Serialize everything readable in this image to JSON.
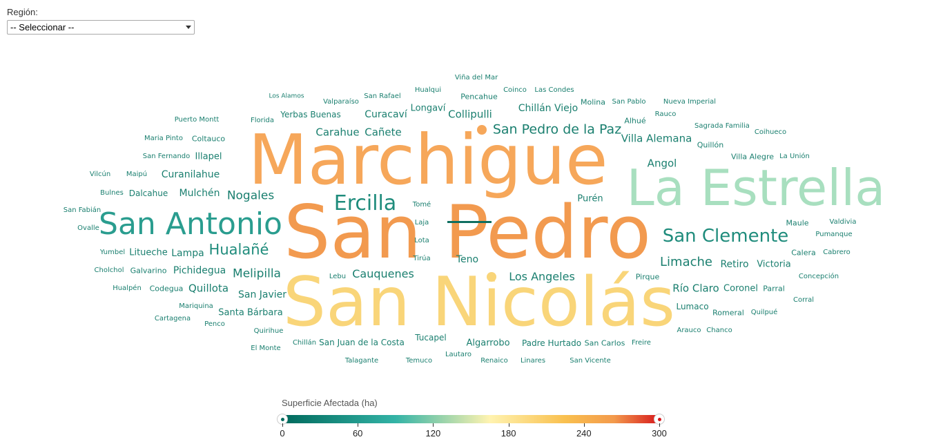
{
  "filter": {
    "label": "Región:",
    "selected": "-- Seleccionar --"
  },
  "legend": {
    "title": "Superficie Afectada (ha)",
    "ticks": [
      "0",
      "60",
      "120",
      "180",
      "240",
      "300"
    ],
    "range": [
      0,
      300
    ],
    "colors": [
      "#00695c",
      "#33b3a6",
      "#fff3b0",
      "#f9c04f",
      "#f39a4c",
      "#d7191c"
    ]
  },
  "words": [
    {
      "text": "Marchigue",
      "color": "#f6a75a"
    },
    {
      "text": "San Pedro",
      "color": "#f29a4f"
    },
    {
      "text": "San Nicolás",
      "color": "#f9d579"
    },
    {
      "text": "La Estrella",
      "color": "#a8dfbf"
    },
    {
      "text": "San Antonio",
      "color": "#2a9d8f"
    },
    {
      "text": "Ercilla",
      "color": "#1f8c7c"
    },
    {
      "text": "San Clemente",
      "color": "#1f8c7c"
    },
    {
      "text": "Hualañé",
      "color": "#1f8c7c"
    },
    {
      "text": "San Pedro de la Paz",
      "color": "#1a7f6f"
    },
    {
      "text": "Nogales",
      "color": "#1a7f6f"
    },
    {
      "text": "Limache",
      "color": "#1a7f6f"
    },
    {
      "text": "Villa Alemana",
      "color": "#1a7f6f"
    },
    {
      "text": "Cauquenes",
      "color": "#1a7f6f"
    },
    {
      "text": "Los Angeles",
      "color": "#1a7f6f"
    },
    {
      "text": "Melipilla",
      "color": "#1a7f6f"
    },
    {
      "text": "Carahue",
      "color": "#1a7f6f"
    },
    {
      "text": "Cañete",
      "color": "#1a7f6f"
    },
    {
      "text": "Collipulli",
      "color": "#1a7f6f"
    },
    {
      "text": "Chillán Viejo",
      "color": "#1a7f6f"
    },
    {
      "text": "Curacaví",
      "color": "#1a7f6f"
    },
    {
      "text": "Angol",
      "color": "#1a7f6f"
    },
    {
      "text": "Mulchén",
      "color": "#1a7f6f"
    },
    {
      "text": "Curanilahue",
      "color": "#1a7f6f"
    },
    {
      "text": "Río Claro",
      "color": "#1a7f6f"
    },
    {
      "text": "Retiro",
      "color": "#1a7f6f"
    },
    {
      "text": "Pichidegua",
      "color": "#1a7f6f"
    },
    {
      "text": "Quillota",
      "color": "#1a7f6f"
    },
    {
      "text": "San Javier",
      "color": "#1a7f6f"
    },
    {
      "text": "Teno",
      "color": "#1a7f6f"
    },
    {
      "text": "Lampa",
      "color": "#1a7f6f"
    },
    {
      "text": "Victoria",
      "color": "#1a7f6f"
    },
    {
      "text": "Coronel",
      "color": "#1a7f6f"
    },
    {
      "text": "Longaví",
      "color": "#1a7f6f"
    },
    {
      "text": "Illapel",
      "color": "#1a7f6f"
    },
    {
      "text": "Purén",
      "color": "#1a7f6f"
    },
    {
      "text": "Litueche",
      "color": "#1a7f6f"
    },
    {
      "text": "Santa Bárbara",
      "color": "#1a7f6f"
    },
    {
      "text": "Yerbas Buenas",
      "color": "#1a7f6f"
    },
    {
      "text": "Tucapel",
      "color": "#1a7f6f"
    },
    {
      "text": "Algarrobo",
      "color": "#1a7f6f"
    },
    {
      "text": "Padre Hurtado",
      "color": "#1a7f6f"
    },
    {
      "text": "San Juan de la Costa",
      "color": "#1a7f6f"
    },
    {
      "text": "Lumaco",
      "color": "#1a7f6f"
    },
    {
      "text": "Dalcahue",
      "color": "#1a7f6f"
    },
    {
      "text": "Galvarino",
      "color": "#1a7f6f"
    },
    {
      "text": "Codegua",
      "color": "#1a7f6f"
    },
    {
      "text": "Coltauco",
      "color": "#1a7f6f"
    },
    {
      "text": "Quillón",
      "color": "#1a7f6f"
    },
    {
      "text": "Villa Alegre",
      "color": "#1a7f6f"
    },
    {
      "text": "Maule",
      "color": "#1a7f6f"
    },
    {
      "text": "Molina",
      "color": "#1a7f6f"
    },
    {
      "text": "Alhué",
      "color": "#1a7f6f"
    },
    {
      "text": "Pencahue",
      "color": "#1a7f6f"
    },
    {
      "text": "Hualqui",
      "color": "#1a7f6f"
    },
    {
      "text": "Valparaíso",
      "color": "#1a7f6f"
    },
    {
      "text": "San Rafael",
      "color": "#1a7f6f"
    },
    {
      "text": "Coinco",
      "color": "#1a7f6f"
    },
    {
      "text": "Las Condes",
      "color": "#1a7f6f"
    },
    {
      "text": "Viña del Mar",
      "color": "#1a7f6f"
    },
    {
      "text": "Los Alamos",
      "color": "#1a7f6f"
    },
    {
      "text": "Florida",
      "color": "#1a7f6f"
    },
    {
      "text": "Puerto Montt",
      "color": "#1a7f6f"
    },
    {
      "text": "Maria Pinto",
      "color": "#1a7f6f"
    },
    {
      "text": "San Fernando",
      "color": "#1a7f6f"
    },
    {
      "text": "Vilcún",
      "color": "#1a7f6f"
    },
    {
      "text": "Maipú",
      "color": "#1a7f6f"
    },
    {
      "text": "Bulnes",
      "color": "#1a7f6f"
    },
    {
      "text": "San Fabián",
      "color": "#1a7f6f"
    },
    {
      "text": "Ovalle",
      "color": "#1a7f6f"
    },
    {
      "text": "Yumbel",
      "color": "#1a7f6f"
    },
    {
      "text": "Cholchol",
      "color": "#1a7f6f"
    },
    {
      "text": "Hualpén",
      "color": "#1a7f6f"
    },
    {
      "text": "Mariquina",
      "color": "#1a7f6f"
    },
    {
      "text": "Cartagena",
      "color": "#1a7f6f"
    },
    {
      "text": "Penco",
      "color": "#1a7f6f"
    },
    {
      "text": "Quirihue",
      "color": "#1a7f6f"
    },
    {
      "text": "El Monte",
      "color": "#1a7f6f"
    },
    {
      "text": "Chillán",
      "color": "#1a7f6f"
    },
    {
      "text": "Talagante",
      "color": "#1a7f6f"
    },
    {
      "text": "Temuco",
      "color": "#1a7f6f"
    },
    {
      "text": "Lautaro",
      "color": "#1a7f6f"
    },
    {
      "text": "Renaico",
      "color": "#1a7f6f"
    },
    {
      "text": "Linares",
      "color": "#1a7f6f"
    },
    {
      "text": "San Vicente",
      "color": "#1a7f6f"
    },
    {
      "text": "San Carlos",
      "color": "#1a7f6f"
    },
    {
      "text": "Freire",
      "color": "#1a7f6f"
    },
    {
      "text": "Lebu",
      "color": "#1a7f6f"
    },
    {
      "text": "Tomé",
      "color": "#1a7f6f"
    },
    {
      "text": "Laja",
      "color": "#1a7f6f"
    },
    {
      "text": "Lota",
      "color": "#1a7f6f"
    },
    {
      "text": "Tirúa",
      "color": "#1a7f6f"
    },
    {
      "text": "Pirque",
      "color": "#1a7f6f"
    },
    {
      "text": "Romeral",
      "color": "#1a7f6f"
    },
    {
      "text": "Quilpué",
      "color": "#1a7f6f"
    },
    {
      "text": "Arauco",
      "color": "#1a7f6f"
    },
    {
      "text": "Chanco",
      "color": "#1a7f6f"
    },
    {
      "text": "Parral",
      "color": "#1a7f6f"
    },
    {
      "text": "Corral",
      "color": "#1a7f6f"
    },
    {
      "text": "Concepción",
      "color": "#1a7f6f"
    },
    {
      "text": "Calera",
      "color": "#1a7f6f"
    },
    {
      "text": "Cabrero",
      "color": "#1a7f6f"
    },
    {
      "text": "Pumanque",
      "color": "#1a7f6f"
    },
    {
      "text": "Valdivia",
      "color": "#1a7f6f"
    },
    {
      "text": "La Unión",
      "color": "#1a7f6f"
    },
    {
      "text": "Coihueco",
      "color": "#1a7f6f"
    },
    {
      "text": "Sagrada Familia",
      "color": "#1a7f6f"
    },
    {
      "text": "Rauco",
      "color": "#1a7f6f"
    },
    {
      "text": "San Pablo",
      "color": "#1a7f6f"
    },
    {
      "text": "Nueva Imperial",
      "color": "#1a7f6f"
    }
  ]
}
